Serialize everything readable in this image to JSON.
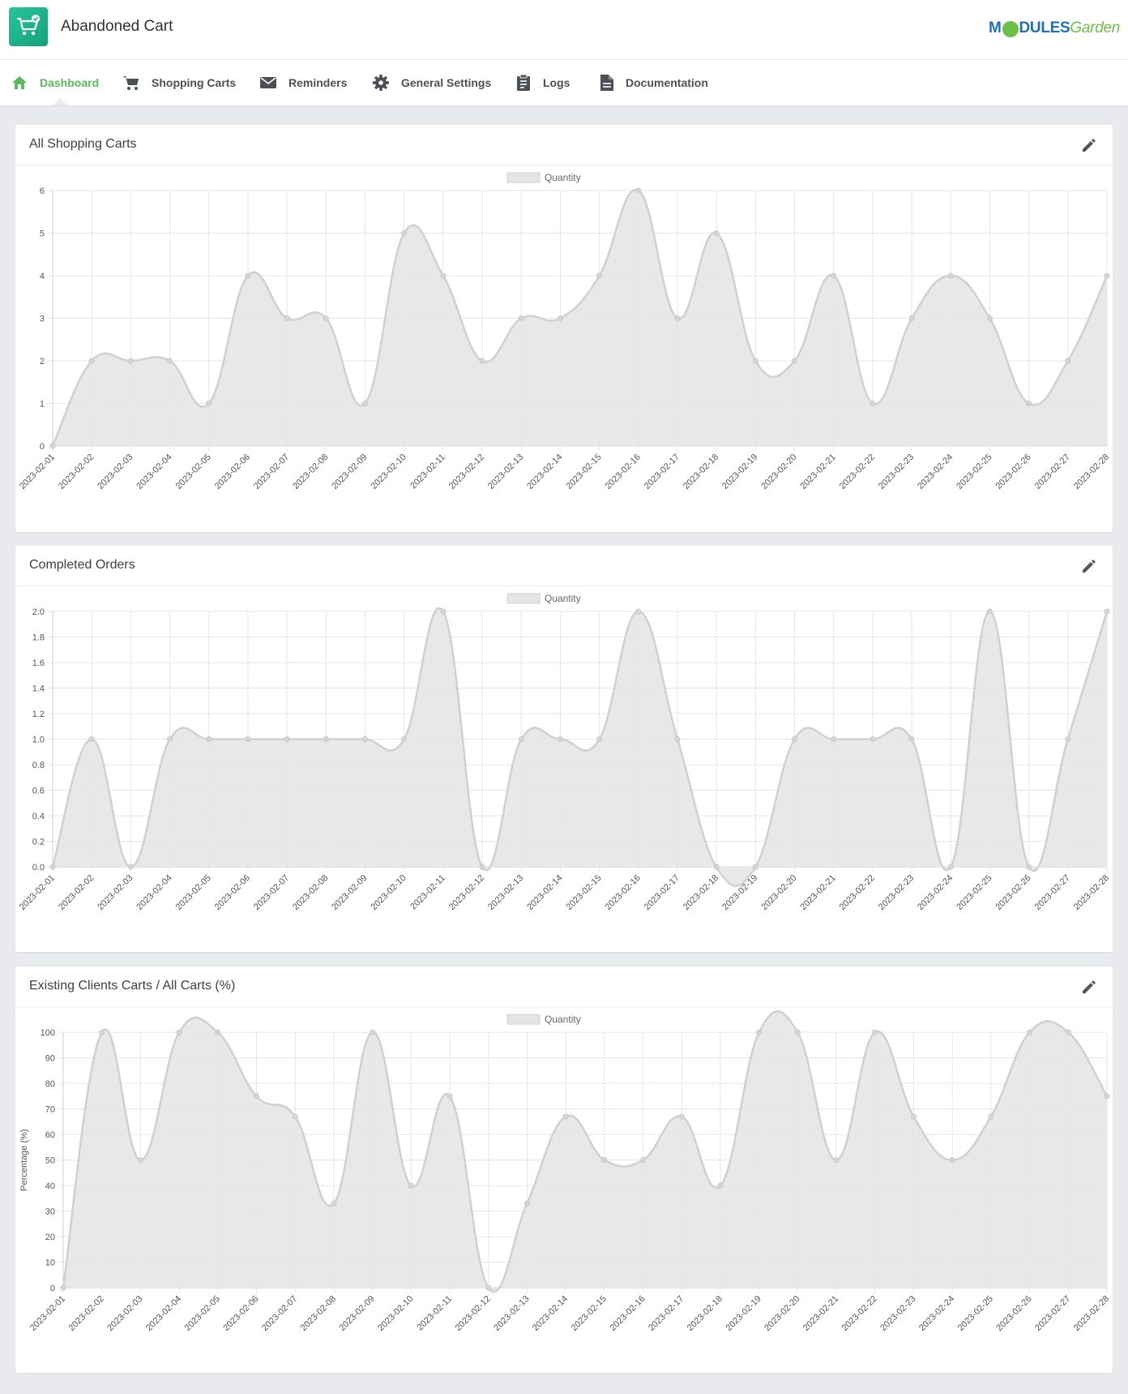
{
  "app": {
    "title": "Abandoned Cart",
    "logo": {
      "left": "M",
      "mid": "DULES",
      "right": "Garden"
    }
  },
  "nav": [
    {
      "label": "Dashboard",
      "icon": "home-icon",
      "active": true
    },
    {
      "label": "Shopping Carts",
      "icon": "cart-icon",
      "active": false
    },
    {
      "label": "Reminders",
      "icon": "envelope-icon",
      "active": false
    },
    {
      "label": "General Settings",
      "icon": "gear-icon",
      "active": false
    },
    {
      "label": "Logs",
      "icon": "clipboard-icon",
      "active": false
    },
    {
      "label": "Documentation",
      "icon": "document-icon",
      "active": false
    }
  ],
  "colors": {
    "accent": "#5cb85c",
    "series_fill": "#e5e5e5",
    "series_line": "#d0d0d0",
    "grid": "#e6e6e6"
  },
  "panels": [
    {
      "title": "All Shopping Carts",
      "edit_icon": "pencil-icon"
    },
    {
      "title": "Completed Orders",
      "edit_icon": "pencil-icon"
    },
    {
      "title": "Existing Clients Carts / All Carts (%)",
      "edit_icon": "pencil-icon"
    }
  ],
  "chart_data": [
    {
      "type": "area",
      "title": "All Shopping Carts",
      "legend": [
        "Quantity"
      ],
      "xlabel": "",
      "ylabel": "",
      "ylim": [
        0,
        6
      ],
      "ystep": 1,
      "grid": true,
      "legend_position": "top",
      "x": [
        "2023-02-01",
        "2023-02-02",
        "2023-02-03",
        "2023-02-04",
        "2023-02-05",
        "2023-02-06",
        "2023-02-07",
        "2023-02-08",
        "2023-02-09",
        "2023-02-10",
        "2023-02-11",
        "2023-02-12",
        "2023-02-13",
        "2023-02-14",
        "2023-02-15",
        "2023-02-16",
        "2023-02-17",
        "2023-02-18",
        "2023-02-19",
        "2023-02-20",
        "2023-02-21",
        "2023-02-22",
        "2023-02-23",
        "2023-02-24",
        "2023-02-25",
        "2023-02-26",
        "2023-02-27",
        "2023-02-28"
      ],
      "series": [
        {
          "name": "Quantity",
          "values": [
            0,
            2,
            2,
            2,
            1,
            4,
            3,
            3,
            1,
            5,
            4,
            2,
            3,
            3,
            4,
            6,
            3,
            5,
            2,
            2,
            4,
            1,
            3,
            4,
            3,
            1,
            2,
            4
          ]
        }
      ]
    },
    {
      "type": "area",
      "title": "Completed Orders",
      "legend": [
        "Quantity"
      ],
      "xlabel": "",
      "ylabel": "",
      "ylim": [
        0,
        2
      ],
      "ystep": 0.2,
      "grid": true,
      "legend_position": "top",
      "x": [
        "2023-02-01",
        "2023-02-02",
        "2023-02-03",
        "2023-02-04",
        "2023-02-05",
        "2023-02-06",
        "2023-02-07",
        "2023-02-08",
        "2023-02-09",
        "2023-02-10",
        "2023-02-11",
        "2023-02-12",
        "2023-02-13",
        "2023-02-14",
        "2023-02-15",
        "2023-02-16",
        "2023-02-17",
        "2023-02-18",
        "2023-02-19",
        "2023-02-20",
        "2023-02-21",
        "2023-02-22",
        "2023-02-23",
        "2023-02-24",
        "2023-02-25",
        "2023-02-26",
        "2023-02-27",
        "2023-02-28"
      ],
      "series": [
        {
          "name": "Quantity",
          "values": [
            0,
            1,
            0,
            1,
            1,
            1,
            1,
            1,
            1,
            1,
            2,
            0,
            1,
            1,
            1,
            2,
            1,
            0,
            0,
            1,
            1,
            1,
            1,
            0,
            2,
            0,
            1,
            2
          ]
        }
      ]
    },
    {
      "type": "area",
      "title": "Existing Clients Carts / All Carts (%)",
      "legend": [
        "Quantity"
      ],
      "xlabel": "",
      "ylabel": "Percentage (%)",
      "ylim": [
        0,
        100
      ],
      "ystep": 10,
      "grid": true,
      "legend_position": "top",
      "x": [
        "2023-02-01",
        "2023-02-02",
        "2023-02-03",
        "2023-02-04",
        "2023-02-05",
        "2023-02-06",
        "2023-02-07",
        "2023-02-08",
        "2023-02-09",
        "2023-02-10",
        "2023-02-11",
        "2023-02-12",
        "2023-02-13",
        "2023-02-14",
        "2023-02-15",
        "2023-02-16",
        "2023-02-17",
        "2023-02-18",
        "2023-02-19",
        "2023-02-20",
        "2023-02-21",
        "2023-02-22",
        "2023-02-23",
        "2023-02-24",
        "2023-02-25",
        "2023-02-26",
        "2023-02-27",
        "2023-02-28"
      ],
      "series": [
        {
          "name": "Quantity",
          "values": [
            0,
            100,
            50,
            100,
            100,
            75,
            67,
            33,
            100,
            40,
            75,
            0,
            33,
            67,
            50,
            50,
            67,
            40,
            100,
            100,
            50,
            100,
            67,
            50,
            67,
            100,
            100,
            75
          ]
        }
      ]
    }
  ]
}
